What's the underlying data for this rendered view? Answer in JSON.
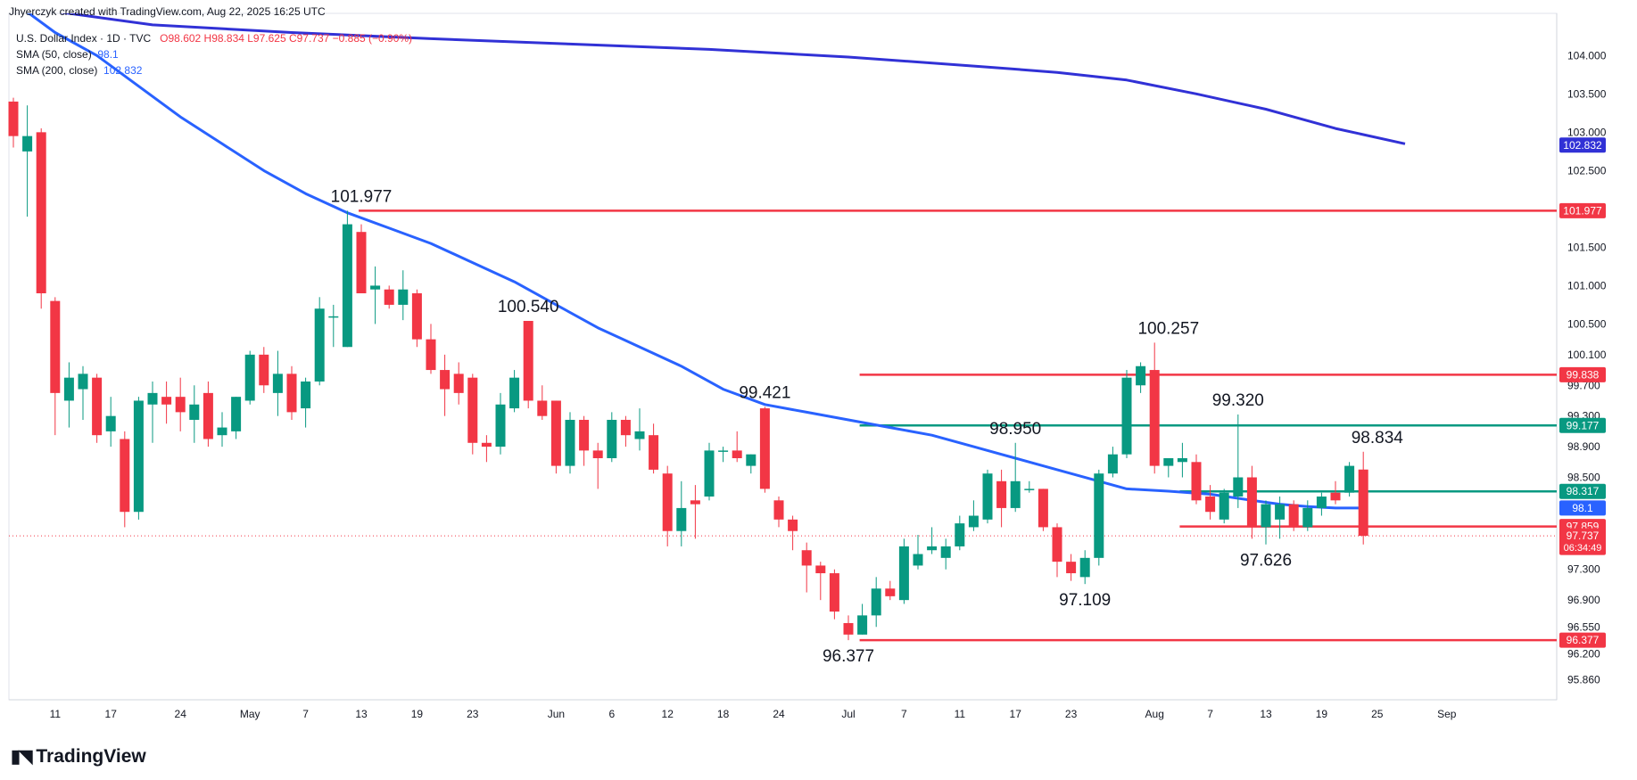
{
  "header": {
    "attribution": "Jhyerczyk created with TradingView.com, Aug 22, 2025 16:25 UTC"
  },
  "legend": {
    "symbol": "U.S. Dollar Index · 1D · TVC",
    "ohlc": "O98.602  H98.834  L97.625  C97.737  −0.885 (−0.90%)",
    "sma50_label": "SMA (50, close)",
    "sma50_value": "98.1",
    "sma200_label": "SMA (200, close)",
    "sma200_value": "102.832"
  },
  "footer": {
    "brand": "TradingView"
  },
  "colors": {
    "up": "#089981",
    "down": "#f23645",
    "sma": "#2962ff",
    "sma200": "#3131d6",
    "red_line": "#f23645",
    "green_line": "#089981"
  },
  "chart_data": {
    "type": "candlestick",
    "ylim": [
      95.6,
      104.55
    ],
    "x_ticks": [
      {
        "label": "11",
        "idx": 3
      },
      {
        "label": "17",
        "idx": 7
      },
      {
        "label": "24",
        "idx": 12
      },
      {
        "label": "May",
        "idx": 17
      },
      {
        "label": "7",
        "idx": 21
      },
      {
        "label": "13",
        "idx": 25
      },
      {
        "label": "19",
        "idx": 29
      },
      {
        "label": "23",
        "idx": 33
      },
      {
        "label": "Jun",
        "idx": 39
      },
      {
        "label": "6",
        "idx": 43
      },
      {
        "label": "12",
        "idx": 47
      },
      {
        "label": "18",
        "idx": 51
      },
      {
        "label": "24",
        "idx": 55
      },
      {
        "label": "Jul",
        "idx": 60
      },
      {
        "label": "7",
        "idx": 64
      },
      {
        "label": "11",
        "idx": 68
      },
      {
        "label": "17",
        "idx": 72
      },
      {
        "label": "23",
        "idx": 76
      },
      {
        "label": "Aug",
        "idx": 82
      },
      {
        "label": "7",
        "idx": 86
      },
      {
        "label": "13",
        "idx": 90
      },
      {
        "label": "19",
        "idx": 94
      },
      {
        "label": "25",
        "idx": 98
      },
      {
        "label": "Sep",
        "idx": 103
      }
    ],
    "y_ticks": [
      "104.000",
      "103.500",
      "103.000",
      "102.500",
      "101.500",
      "101.000",
      "100.500",
      "100.100",
      "99.700",
      "99.300",
      "98.900",
      "98.500",
      "97.300",
      "96.900",
      "96.550",
      "96.200",
      "95.860"
    ],
    "candles": [
      {
        "o": 103.4,
        "h": 103.45,
        "l": 102.8,
        "c": 102.95
      },
      {
        "o": 102.75,
        "h": 103.35,
        "l": 101.9,
        "c": 102.95
      },
      {
        "o": 103.0,
        "h": 103.05,
        "l": 100.7,
        "c": 100.9
      },
      {
        "o": 100.8,
        "h": 100.85,
        "l": 99.05,
        "c": 99.6
      },
      {
        "o": 99.5,
        "h": 100.0,
        "l": 99.15,
        "c": 99.8
      },
      {
        "o": 99.65,
        "h": 99.95,
        "l": 99.25,
        "c": 99.85
      },
      {
        "o": 99.8,
        "h": 99.85,
        "l": 98.95,
        "c": 99.05
      },
      {
        "o": 99.1,
        "h": 99.55,
        "l": 98.9,
        "c": 99.3
      },
      {
        "o": 99.0,
        "h": 99.1,
        "l": 97.85,
        "c": 98.05
      },
      {
        "o": 98.05,
        "h": 99.55,
        "l": 97.95,
        "c": 99.5
      },
      {
        "o": 99.45,
        "h": 99.75,
        "l": 98.95,
        "c": 99.6
      },
      {
        "o": 99.55,
        "h": 99.75,
        "l": 99.2,
        "c": 99.45
      },
      {
        "o": 99.55,
        "h": 99.8,
        "l": 99.1,
        "c": 99.35
      },
      {
        "o": 99.25,
        "h": 99.7,
        "l": 98.95,
        "c": 99.45
      },
      {
        "o": 99.6,
        "h": 99.75,
        "l": 98.9,
        "c": 99.0
      },
      {
        "o": 99.05,
        "h": 99.35,
        "l": 98.9,
        "c": 99.15
      },
      {
        "o": 99.1,
        "h": 99.55,
        "l": 99.0,
        "c": 99.55
      },
      {
        "o": 99.5,
        "h": 100.15,
        "l": 99.45,
        "c": 100.1
      },
      {
        "o": 100.1,
        "h": 100.2,
        "l": 99.6,
        "c": 99.7
      },
      {
        "o": 99.6,
        "h": 100.15,
        "l": 99.3,
        "c": 99.85
      },
      {
        "o": 99.85,
        "h": 99.95,
        "l": 99.25,
        "c": 99.35
      },
      {
        "o": 99.4,
        "h": 99.8,
        "l": 99.15,
        "c": 99.75
      },
      {
        "o": 99.75,
        "h": 100.85,
        "l": 99.7,
        "c": 100.7
      },
      {
        "o": 100.6,
        "h": 100.75,
        "l": 100.2,
        "c": 100.6
      },
      {
        "o": 100.2,
        "h": 101.977,
        "l": 100.2,
        "c": 101.8
      },
      {
        "o": 101.7,
        "h": 101.8,
        "l": 100.9,
        "c": 100.9
      },
      {
        "o": 100.95,
        "h": 101.25,
        "l": 100.5,
        "c": 101.0
      },
      {
        "o": 100.95,
        "h": 101.0,
        "l": 100.7,
        "c": 100.75
      },
      {
        "o": 100.75,
        "h": 101.2,
        "l": 100.55,
        "c": 100.95
      },
      {
        "o": 100.9,
        "h": 100.95,
        "l": 100.2,
        "c": 100.3
      },
      {
        "o": 100.3,
        "h": 100.5,
        "l": 99.85,
        "c": 99.9
      },
      {
        "o": 99.9,
        "h": 100.1,
        "l": 99.3,
        "c": 99.65
      },
      {
        "o": 99.85,
        "h": 100.0,
        "l": 99.45,
        "c": 99.6
      },
      {
        "o": 99.8,
        "h": 99.85,
        "l": 98.8,
        "c": 98.95
      },
      {
        "o": 98.95,
        "h": 99.05,
        "l": 98.7,
        "c": 98.9
      },
      {
        "o": 98.9,
        "h": 99.6,
        "l": 98.8,
        "c": 99.45
      },
      {
        "o": 99.4,
        "h": 99.9,
        "l": 99.35,
        "c": 99.8
      },
      {
        "o": 100.54,
        "h": 100.54,
        "l": 99.4,
        "c": 99.5
      },
      {
        "o": 99.5,
        "h": 99.7,
        "l": 99.25,
        "c": 99.3
      },
      {
        "o": 99.5,
        "h": 99.5,
        "l": 98.55,
        "c": 98.65
      },
      {
        "o": 98.65,
        "h": 99.35,
        "l": 98.55,
        "c": 99.25
      },
      {
        "o": 99.25,
        "h": 99.3,
        "l": 98.65,
        "c": 98.85
      },
      {
        "o": 98.85,
        "h": 98.95,
        "l": 98.35,
        "c": 98.75
      },
      {
        "o": 98.75,
        "h": 99.35,
        "l": 98.7,
        "c": 99.25
      },
      {
        "o": 99.25,
        "h": 99.3,
        "l": 98.9,
        "c": 99.05
      },
      {
        "o": 99.0,
        "h": 99.4,
        "l": 98.85,
        "c": 99.1
      },
      {
        "o": 99.05,
        "h": 99.2,
        "l": 98.55,
        "c": 98.6
      },
      {
        "o": 98.55,
        "h": 98.65,
        "l": 97.6,
        "c": 97.8
      },
      {
        "o": 97.8,
        "h": 98.45,
        "l": 97.6,
        "c": 98.1
      },
      {
        "o": 98.2,
        "h": 98.4,
        "l": 97.7,
        "c": 98.15
      },
      {
        "o": 98.25,
        "h": 98.95,
        "l": 98.2,
        "c": 98.85
      },
      {
        "o": 98.85,
        "h": 98.9,
        "l": 98.7,
        "c": 98.85
      },
      {
        "o": 98.85,
        "h": 99.1,
        "l": 98.7,
        "c": 98.75
      },
      {
        "o": 98.65,
        "h": 98.8,
        "l": 98.55,
        "c": 98.8
      },
      {
        "o": 99.4,
        "h": 99.421,
        "l": 98.3,
        "c": 98.35
      },
      {
        "o": 98.2,
        "h": 98.25,
        "l": 97.85,
        "c": 97.95
      },
      {
        "o": 97.95,
        "h": 98.0,
        "l": 97.55,
        "c": 97.8
      },
      {
        "o": 97.55,
        "h": 97.65,
        "l": 97.0,
        "c": 97.35
      },
      {
        "o": 97.35,
        "h": 97.4,
        "l": 96.9,
        "c": 97.25
      },
      {
        "o": 97.25,
        "h": 97.3,
        "l": 96.65,
        "c": 96.75
      },
      {
        "o": 96.6,
        "h": 96.7,
        "l": 96.377,
        "c": 96.45
      },
      {
        "o": 96.45,
        "h": 96.85,
        "l": 96.45,
        "c": 96.7
      },
      {
        "o": 96.7,
        "h": 97.2,
        "l": 96.55,
        "c": 97.05
      },
      {
        "o": 97.05,
        "h": 97.15,
        "l": 96.9,
        "c": 96.95
      },
      {
        "o": 96.9,
        "h": 97.7,
        "l": 96.85,
        "c": 97.6
      },
      {
        "o": 97.35,
        "h": 97.75,
        "l": 97.3,
        "c": 97.5
      },
      {
        "o": 97.55,
        "h": 97.85,
        "l": 97.5,
        "c": 97.6
      },
      {
        "o": 97.45,
        "h": 97.7,
        "l": 97.3,
        "c": 97.6
      },
      {
        "o": 97.6,
        "h": 98.0,
        "l": 97.55,
        "c": 97.9
      },
      {
        "o": 97.85,
        "h": 98.2,
        "l": 97.8,
        "c": 98.0
      },
      {
        "o": 97.95,
        "h": 98.6,
        "l": 97.9,
        "c": 98.55
      },
      {
        "o": 98.45,
        "h": 98.6,
        "l": 97.85,
        "c": 98.1
      },
      {
        "o": 98.1,
        "h": 98.95,
        "l": 98.05,
        "c": 98.45
      },
      {
        "o": 98.35,
        "h": 98.45,
        "l": 98.3,
        "c": 98.35
      },
      {
        "o": 98.35,
        "h": 98.35,
        "l": 97.8,
        "c": 97.85
      },
      {
        "o": 97.85,
        "h": 97.9,
        "l": 97.2,
        "c": 97.4
      },
      {
        "o": 97.4,
        "h": 97.5,
        "l": 97.15,
        "c": 97.25
      },
      {
        "o": 97.2,
        "h": 97.55,
        "l": 97.109,
        "c": 97.45
      },
      {
        "o": 97.45,
        "h": 98.6,
        "l": 97.35,
        "c": 98.55
      },
      {
        "o": 98.55,
        "h": 98.9,
        "l": 98.5,
        "c": 98.8
      },
      {
        "o": 98.8,
        "h": 99.9,
        "l": 98.75,
        "c": 99.8
      },
      {
        "o": 99.7,
        "h": 100.0,
        "l": 99.6,
        "c": 99.95
      },
      {
        "o": 99.9,
        "h": 100.257,
        "l": 98.55,
        "c": 98.65
      },
      {
        "o": 98.65,
        "h": 98.75,
        "l": 98.5,
        "c": 98.75
      },
      {
        "o": 98.7,
        "h": 98.95,
        "l": 98.5,
        "c": 98.75
      },
      {
        "o": 98.7,
        "h": 98.8,
        "l": 98.15,
        "c": 98.2
      },
      {
        "o": 98.25,
        "h": 98.4,
        "l": 97.95,
        "c": 98.05
      },
      {
        "o": 97.95,
        "h": 98.35,
        "l": 97.9,
        "c": 98.3
      },
      {
        "o": 98.25,
        "h": 99.32,
        "l": 98.1,
        "c": 98.5
      },
      {
        "o": 98.5,
        "h": 98.65,
        "l": 97.7,
        "c": 97.85
      },
      {
        "o": 97.85,
        "h": 98.2,
        "l": 97.626,
        "c": 98.15
      },
      {
        "o": 97.95,
        "h": 98.25,
        "l": 97.7,
        "c": 98.15
      },
      {
        "o": 98.15,
        "h": 98.2,
        "l": 97.8,
        "c": 97.85
      },
      {
        "o": 97.85,
        "h": 98.2,
        "l": 97.8,
        "c": 98.1
      },
      {
        "o": 98.1,
        "h": 98.3,
        "l": 98.0,
        "c": 98.25
      },
      {
        "o": 98.3,
        "h": 98.45,
        "l": 98.15,
        "c": 98.2
      },
      {
        "o": 98.3,
        "h": 98.7,
        "l": 98.25,
        "c": 98.65
      },
      {
        "o": 98.602,
        "h": 98.834,
        "l": 97.625,
        "c": 97.737
      }
    ],
    "sma50": [
      [
        0,
        104.7
      ],
      [
        3,
        104.3
      ],
      [
        6,
        104.0
      ],
      [
        9,
        103.6
      ],
      [
        12,
        103.2
      ],
      [
        15,
        102.85
      ],
      [
        18,
        102.5
      ],
      [
        21,
        102.2
      ],
      [
        24,
        101.95
      ],
      [
        27,
        101.75
      ],
      [
        30,
        101.55
      ],
      [
        33,
        101.3
      ],
      [
        36,
        101.05
      ],
      [
        39,
        100.75
      ],
      [
        42,
        100.45
      ],
      [
        45,
        100.2
      ],
      [
        48,
        99.95
      ],
      [
        51,
        99.65
      ],
      [
        54,
        99.45
      ],
      [
        57,
        99.35
      ],
      [
        60,
        99.25
      ],
      [
        63,
        99.15
      ],
      [
        66,
        99.05
      ],
      [
        69,
        98.9
      ],
      [
        72,
        98.75
      ],
      [
        75,
        98.6
      ],
      [
        78,
        98.45
      ],
      [
        80,
        98.35
      ],
      [
        83,
        98.32
      ],
      [
        86,
        98.28
      ],
      [
        89,
        98.2
      ],
      [
        91,
        98.15
      ],
      [
        93,
        98.12
      ],
      [
        95,
        98.1
      ],
      [
        97,
        98.1
      ]
    ],
    "sma200": [
      [
        0,
        104.65
      ],
      [
        10,
        104.4
      ],
      [
        20,
        104.3
      ],
      [
        30,
        104.22
      ],
      [
        40,
        104.15
      ],
      [
        50,
        104.08
      ],
      [
        60,
        103.98
      ],
      [
        70,
        103.85
      ],
      [
        75,
        103.78
      ],
      [
        80,
        103.68
      ],
      [
        85,
        103.5
      ],
      [
        90,
        103.3
      ],
      [
        95,
        103.05
      ],
      [
        100,
        102.85
      ]
    ],
    "hlines": [
      {
        "y": 101.977,
        "x0": 25,
        "color": "red",
        "tag": "101.977"
      },
      {
        "y": 99.838,
        "x0": 61,
        "color": "red",
        "tag": "99.838"
      },
      {
        "y": 99.177,
        "x0": 61,
        "color": "green",
        "tag": "99.177"
      },
      {
        "y": 98.317,
        "x0": 84,
        "color": "green",
        "tag": "98.317"
      },
      {
        "y": 97.859,
        "x0": 84,
        "color": "red",
        "tag": "97.859"
      },
      {
        "y": 96.377,
        "x0": 61,
        "color": "red",
        "tag": "96.377"
      }
    ],
    "price_tags": [
      {
        "y": 102.832,
        "text": "102.832",
        "color": "sma200"
      },
      {
        "y": 98.1,
        "text": "98.1",
        "color": "sma"
      },
      {
        "y": 97.737,
        "text": "97.737",
        "color": "down",
        "sub": "06:34:49"
      }
    ],
    "annotations": [
      {
        "idx": 25,
        "y": 101.977,
        "text": "101.977",
        "pos": "above"
      },
      {
        "idx": 37,
        "y": 100.54,
        "text": "100.540",
        "pos": "above"
      },
      {
        "idx": 54,
        "y": 99.421,
        "text": "99.421",
        "pos": "above"
      },
      {
        "idx": 72,
        "y": 98.95,
        "text": "98.950",
        "pos": "above"
      },
      {
        "idx": 83,
        "y": 100.257,
        "text": "100.257",
        "pos": "above"
      },
      {
        "idx": 88,
        "y": 99.32,
        "text": "99.320",
        "pos": "above"
      },
      {
        "idx": 98,
        "y": 98.834,
        "text": "98.834",
        "pos": "above"
      },
      {
        "idx": 60,
        "y": 96.377,
        "text": "96.377",
        "pos": "below"
      },
      {
        "idx": 77,
        "y": 97.109,
        "text": "97.109",
        "pos": "below"
      },
      {
        "idx": 90,
        "y": 97.626,
        "text": "97.626",
        "pos": "below"
      }
    ]
  }
}
